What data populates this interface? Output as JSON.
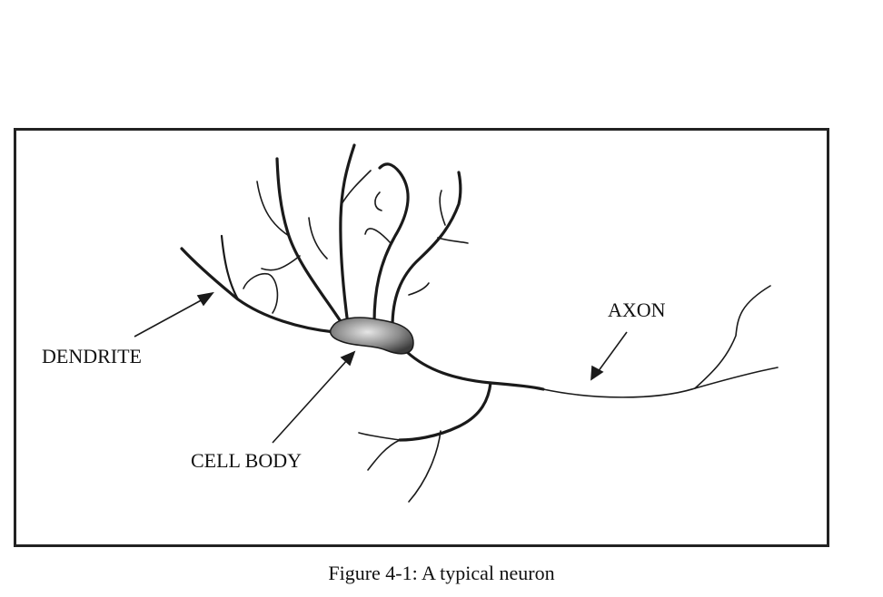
{
  "figure": {
    "caption": "Figure 4-1: A typical neuron",
    "labels": {
      "dendrite": "DENDRITE",
      "cell_body": "CELL BODY",
      "axon": "AXON"
    }
  },
  "colors": {
    "stroke": "#1a1a1a",
    "cell_body_fill_light": "#d8d8d8",
    "cell_body_fill_dark": "#4a4a4a"
  }
}
